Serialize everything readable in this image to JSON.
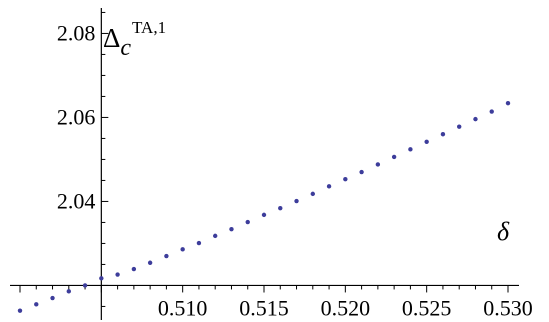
{
  "chart_data": {
    "type": "scatter",
    "xlabel": "δ",
    "ylabel": {
      "base": "Δ",
      "subscript": "c",
      "superscript": "TA,1"
    },
    "x_ticks": [
      {
        "value": 0.51,
        "label": "0.510"
      },
      {
        "value": 0.515,
        "label": "0.515"
      },
      {
        "value": 0.52,
        "label": "0.520"
      },
      {
        "value": 0.525,
        "label": "0.525"
      },
      {
        "value": 0.53,
        "label": "0.530"
      }
    ],
    "y_ticks": [
      {
        "value": 2.04,
        "label": "2.04"
      },
      {
        "value": 2.06,
        "label": "2.06"
      },
      {
        "value": 2.08,
        "label": "2.08"
      }
    ],
    "xlim": [
      0.5,
      0.53
    ],
    "ylim": [
      2.0132,
      2.0832
    ],
    "x_axis_at_y": 2.02,
    "y_axis_at_x": 0.505,
    "marker_color": "#3d3d9b",
    "series": [
      {
        "x": [
          0.5,
          0.501,
          0.502,
          0.503,
          0.504,
          0.505,
          0.506,
          0.507,
          0.508,
          0.509,
          0.51,
          0.511,
          0.512,
          0.513,
          0.514,
          0.515,
          0.516,
          0.517,
          0.518,
          0.519,
          0.52,
          0.521,
          0.522,
          0.523,
          0.524,
          0.525,
          0.526,
          0.527,
          0.528,
          0.529,
          0.53
        ],
        "values": [
          2.014,
          2.0155,
          2.017,
          2.0186,
          2.02,
          2.0217,
          2.0226,
          2.0239,
          2.0254,
          2.027,
          2.0286,
          2.0301,
          2.0318,
          2.0334,
          2.0351,
          2.0368,
          2.0384,
          2.0401,
          2.0418,
          2.0436,
          2.0453,
          2.047,
          2.0488,
          2.0506,
          2.0524,
          2.0542,
          2.056,
          2.0578,
          2.0596,
          2.0614,
          2.0634
        ]
      }
    ]
  }
}
